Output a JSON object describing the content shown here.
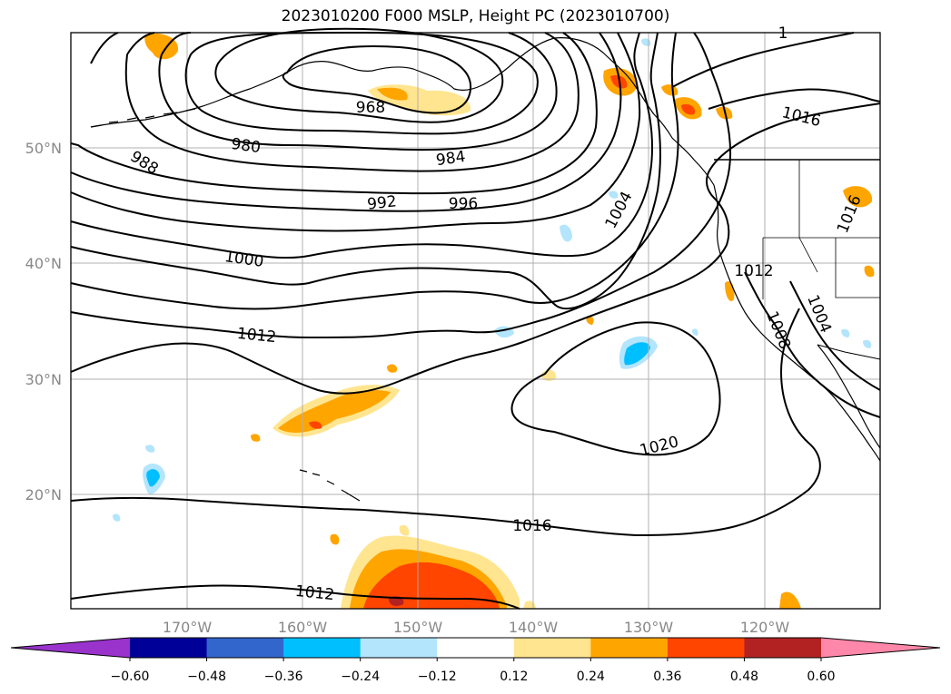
{
  "title": "2023010200 F000 MSLP, Height PC (2023010700)",
  "axes": {
    "lat_labels": [
      "50°N",
      "40°N",
      "30°N",
      "20°N"
    ],
    "lon_labels": [
      "170°W",
      "160°W",
      "150°W",
      "140°W",
      "130°W",
      "120°W"
    ]
  },
  "isobar_labels": [
    "968",
    "980",
    "984",
    "988",
    "992",
    "996",
    "1000",
    "1004",
    "1008",
    "1004",
    "1012",
    "1012",
    "1012",
    "1016",
    "1016",
    "1016",
    "1020",
    "1"
  ],
  "colorbar": {
    "ticks": [
      "−0.60",
      "−0.48",
      "−0.36",
      "−0.24",
      "−0.12",
      "0.12",
      "0.24",
      "0.36",
      "0.48",
      "0.60"
    ],
    "colors": [
      "#9933cc",
      "#000099",
      "#3366cc",
      "#00bfff",
      "#b3e5fc",
      "#ffffff",
      "#ffe58f",
      "#ffa500",
      "#ff4500",
      "#b22222",
      "#ff88aa"
    ]
  },
  "colors": {
    "coast": "#000000",
    "grid": "#b0b0b0",
    "isobar": "#000000"
  }
}
